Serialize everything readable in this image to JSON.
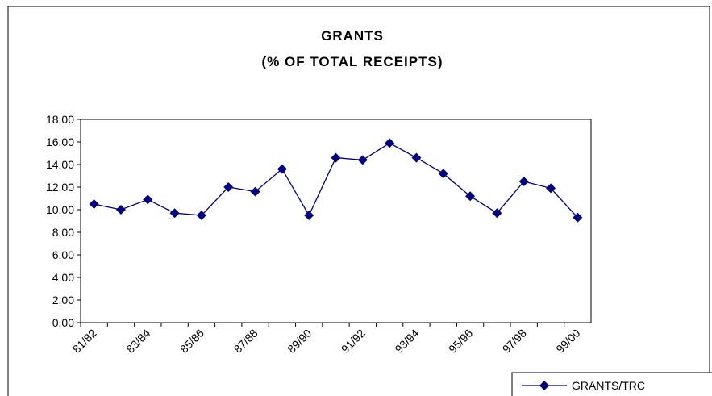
{
  "chart_data": {
    "type": "line",
    "title": "GRANTS",
    "subtitle": "(% OF TOTAL RECEIPTS)",
    "categories": [
      "81/82",
      null,
      "83/84",
      null,
      "85/86",
      null,
      "87/88",
      null,
      "89/90",
      null,
      "91/92",
      null,
      "93/94",
      null,
      "95/96",
      null,
      "97/98",
      null,
      "99/00"
    ],
    "series": [
      {
        "name": "GRANTS/TRC",
        "color": "#000080",
        "values": [
          10.5,
          10.0,
          10.9,
          9.7,
          9.5,
          12.0,
          11.6,
          13.6,
          9.5,
          14.6,
          14.4,
          15.9,
          14.6,
          13.2,
          11.2,
          9.7,
          12.5,
          11.9,
          9.3
        ]
      }
    ],
    "ylim": [
      0,
      18
    ],
    "yticks": [
      {
        "value": 0,
        "label": "0.00"
      },
      {
        "value": 2,
        "label": "2.00"
      },
      {
        "value": 4,
        "label": "4.00"
      },
      {
        "value": 6,
        "label": "6.00"
      },
      {
        "value": 8,
        "label": "8.00"
      },
      {
        "value": 10,
        "label": "10.00"
      },
      {
        "value": 12,
        "label": "12.00"
      },
      {
        "value": 14,
        "label": "14.00"
      },
      {
        "value": 16,
        "label": "16.00"
      },
      {
        "value": 18,
        "label": "18.00"
      }
    ],
    "legend": "bottom-right"
  }
}
